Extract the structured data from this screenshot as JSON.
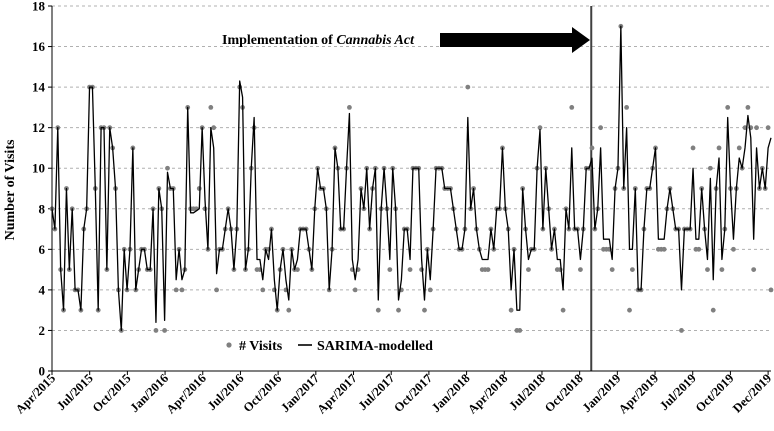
{
  "chart_data": {
    "type": "line",
    "title": "",
    "xlabel": "",
    "ylabel": "Number of Visits",
    "ylim": [
      0,
      18
    ],
    "yticks": [
      0,
      2,
      4,
      6,
      8,
      10,
      12,
      14,
      16,
      18
    ],
    "x_range_weeks": [
      0,
      248
    ],
    "x_tick_labels": [
      "Apr/2015",
      "Jul/2015",
      "Oct/2015",
      "Jan/2016",
      "Apr/2016",
      "Jul/2016",
      "Oct/2016",
      "Jan/2017",
      "Apr/2017",
      "Jul/2017",
      "Oct/2017",
      "Jan/2018",
      "Apr/2018",
      "Jul/2018",
      "Oct/2018",
      "Jan/2019",
      "Apr/2019",
      "Jul/2019",
      "Oct/2019",
      "Dec/2019"
    ],
    "x_tick_weeks": [
      0,
      13,
      26,
      39,
      52,
      65,
      78,
      91,
      104,
      117,
      130,
      143,
      156,
      169,
      182,
      195,
      208,
      221,
      234,
      247
    ],
    "grid": "horizontal dashed",
    "legend": "bottom-left",
    "annotation": {
      "text_prefix": "Implementation of ",
      "text_italic": "Cannabis Act",
      "event_week": 186,
      "arrow": "right-pointing toward event line"
    },
    "series": [
      {
        "name": "# Visits",
        "style": "points",
        "color": "#808080",
        "values": [
          8,
          7,
          12,
          5,
          3,
          9,
          5,
          8,
          4,
          4,
          3,
          7,
          8,
          14,
          14,
          9,
          3,
          12,
          12,
          5,
          12,
          11,
          9,
          4,
          2,
          6,
          4,
          6,
          11,
          4,
          5,
          6,
          6,
          5,
          5,
          8,
          2,
          9,
          8,
          2,
          10,
          9,
          9,
          4,
          6,
          4,
          5,
          13,
          8,
          8,
          8,
          9,
          12,
          8,
          6,
          13,
          12,
          4,
          6,
          6,
          7,
          8,
          7,
          5,
          7,
          14,
          13,
          5,
          6,
          10,
          12,
          5,
          5,
          4,
          6,
          6,
          7,
          4,
          3,
          5,
          6,
          4,
          3,
          6,
          5,
          5,
          7,
          7,
          7,
          6,
          5,
          8,
          10,
          9,
          9,
          8,
          4,
          6,
          11,
          10,
          7,
          7,
          10,
          13,
          5,
          4,
          5,
          9,
          8,
          10,
          7,
          9,
          10,
          3,
          8,
          10,
          8,
          5,
          10,
          8,
          3,
          4,
          7,
          7,
          5,
          10,
          10,
          10,
          5,
          3,
          6,
          4,
          7,
          10,
          10,
          10,
          9,
          9,
          9,
          8,
          7,
          6,
          6,
          7,
          14,
          8,
          9,
          7,
          6,
          5,
          5,
          5,
          7,
          6,
          8,
          8,
          11,
          8,
          7,
          3,
          6,
          2,
          2,
          9,
          7,
          5,
          6,
          6,
          10,
          12,
          7,
          10,
          8,
          6,
          7,
          5,
          5,
          3,
          8,
          7,
          13,
          7,
          7,
          5,
          7,
          10,
          10,
          11,
          7,
          8,
          12,
          6,
          6,
          6,
          5,
          9,
          10,
          17,
          9,
          13,
          3,
          5,
          9,
          4,
          4,
          7,
          9,
          9,
          10,
          11,
          6,
          6,
          6,
          8,
          9,
          8,
          7,
          7,
          2,
          7,
          7,
          7,
          11,
          6,
          6,
          9,
          7,
          5,
          10,
          3,
          9,
          11,
          5,
          7,
          13,
          9,
          6,
          9,
          11,
          10,
          12,
          13,
          12,
          5,
          12,
          9,
          10,
          9,
          12,
          4
        ]
      },
      {
        "name": "SARIMA-modelled",
        "style": "line",
        "color": "#000000",
        "values": [
          8,
          7,
          12,
          5,
          3,
          9,
          5,
          8,
          4,
          4,
          3,
          7,
          8,
          14,
          14,
          9,
          3,
          12,
          12,
          5,
          12,
          11,
          9,
          4,
          2,
          6,
          4,
          6,
          11,
          4,
          5,
          6,
          6,
          5,
          5,
          8,
          2.4,
          9,
          8,
          2.5,
          9.8,
          9,
          9,
          4.5,
          6,
          4.5,
          5,
          13,
          7.8,
          7.8,
          7.9,
          8,
          12,
          8.4,
          6,
          12,
          11,
          4.8,
          6,
          6,
          7,
          8,
          7,
          5,
          7,
          14.3,
          13.5,
          5,
          6,
          10,
          12.5,
          5.5,
          5.5,
          4.5,
          6,
          5.5,
          7,
          4.5,
          3,
          5,
          6,
          4.5,
          3.5,
          6,
          5,
          5.5,
          7,
          7,
          7,
          6,
          5,
          8,
          10,
          9,
          9,
          8,
          4,
          6,
          11,
          10,
          7,
          7,
          10,
          12.7,
          5.5,
          4.5,
          5.5,
          9,
          8,
          10,
          7,
          9,
          10,
          3.5,
          8,
          10,
          8,
          5.5,
          10,
          8,
          3.5,
          4.5,
          7,
          7,
          5.5,
          10,
          10,
          10,
          5.5,
          3.5,
          6,
          4.5,
          7,
          10,
          10,
          10,
          9,
          9,
          9,
          8,
          7,
          6,
          6,
          7,
          12.5,
          8,
          9,
          7,
          6,
          5.5,
          5.5,
          5.5,
          7,
          6,
          8,
          8,
          11,
          8,
          7,
          4,
          6,
          3,
          3,
          9,
          7,
          5.5,
          6,
          6,
          10,
          11.9,
          7,
          10,
          8,
          6,
          7,
          5.5,
          5.5,
          4,
          8,
          7,
          11,
          7,
          7,
          5.5,
          7,
          10,
          10,
          10.5,
          7,
          8,
          11,
          6.5,
          6.5,
          6.5,
          5.5,
          9,
          10,
          17,
          9,
          12,
          6,
          6,
          9,
          4,
          4,
          7,
          9,
          9,
          10,
          11,
          6.5,
          6.5,
          6.5,
          8,
          9,
          8,
          7,
          7,
          4,
          7,
          7,
          7,
          10,
          6.5,
          6.5,
          9,
          7,
          5.5,
          9.5,
          4.5,
          9,
          10.5,
          5.5,
          7,
          12.5,
          9,
          6.5,
          9,
          10.5,
          10,
          11,
          12.6,
          11.5,
          6.5,
          11,
          9,
          10,
          9,
          11,
          11.5
        ]
      }
    ]
  }
}
